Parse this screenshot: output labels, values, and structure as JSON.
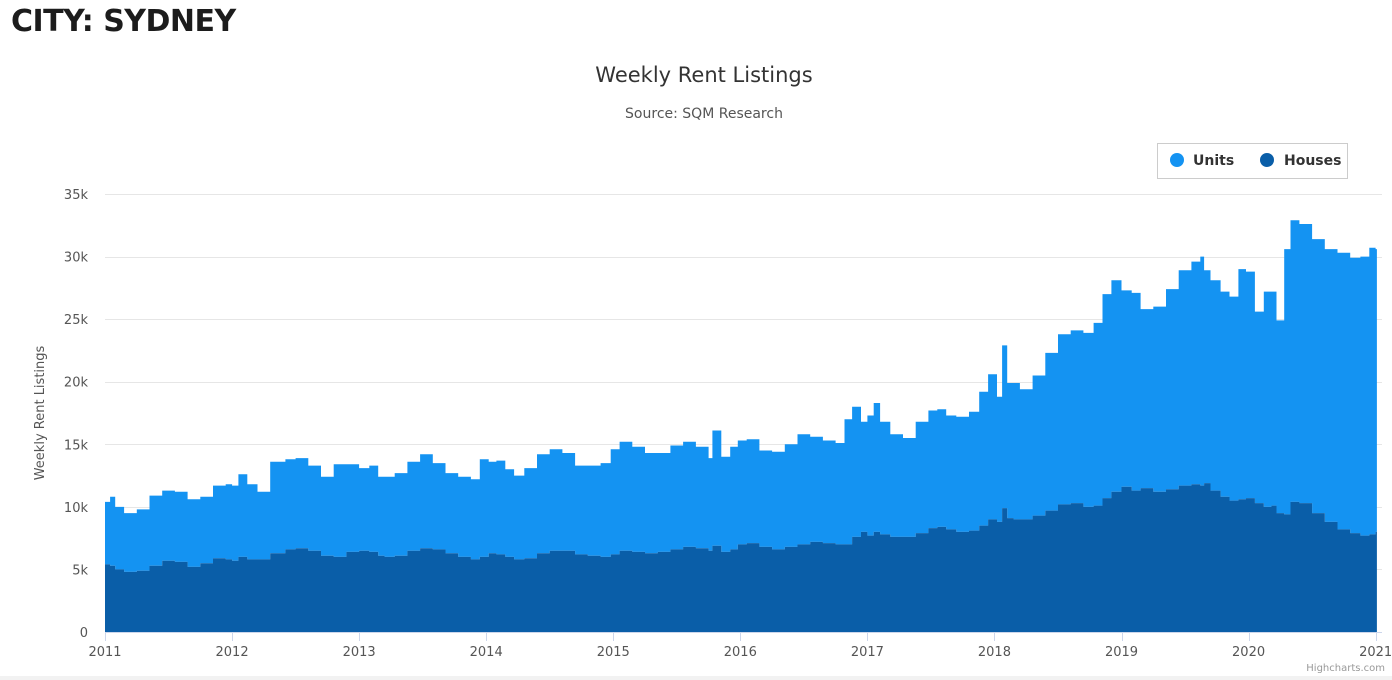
{
  "page": {
    "heading": "CITY: SYDNEY"
  },
  "chart_data": {
    "type": "area",
    "title": "Weekly Rent Listings",
    "subtitle": "Source: SQM Research",
    "xlabel": "",
    "ylabel": "Weekly Rent Listings",
    "credits": "Highcharts.com",
    "stacked": true,
    "grid": true,
    "legend_position": "top-right",
    "xlim": [
      2011.0,
      2021.05
    ],
    "ylim": [
      0,
      35000
    ],
    "x_ticks": [
      2011,
      2012,
      2013,
      2014,
      2015,
      2016,
      2017,
      2018,
      2019,
      2020,
      2021
    ],
    "x_tick_labels": [
      "2011",
      "2012",
      "2013",
      "2014",
      "2015",
      "2016",
      "2017",
      "2018",
      "2019",
      "2020",
      "2021"
    ],
    "y_ticks": [
      0,
      5000,
      10000,
      15000,
      20000,
      25000,
      30000,
      35000
    ],
    "y_tick_labels": [
      "0",
      "5k",
      "10k",
      "15k",
      "20k",
      "25k",
      "30k",
      "35k"
    ],
    "x": [
      2011.0,
      2011.04,
      2011.08,
      2011.15,
      2011.25,
      2011.35,
      2011.45,
      2011.55,
      2011.65,
      2011.75,
      2011.85,
      2011.95,
      2012.0,
      2012.05,
      2012.12,
      2012.2,
      2012.3,
      2012.42,
      2012.5,
      2012.6,
      2012.7,
      2012.8,
      2012.9,
      2013.0,
      2013.08,
      2013.15,
      2013.2,
      2013.28,
      2013.38,
      2013.48,
      2013.58,
      2013.68,
      2013.78,
      2013.88,
      2013.95,
      2014.02,
      2014.08,
      2014.15,
      2014.22,
      2014.3,
      2014.4,
      2014.5,
      2014.6,
      2014.7,
      2014.8,
      2014.9,
      2014.98,
      2015.05,
      2015.15,
      2015.25,
      2015.35,
      2015.45,
      2015.55,
      2015.65,
      2015.75,
      2015.78,
      2015.85,
      2015.92,
      2015.98,
      2016.05,
      2016.15,
      2016.25,
      2016.35,
      2016.45,
      2016.55,
      2016.65,
      2016.75,
      2016.82,
      2016.88,
      2016.95,
      2017.0,
      2017.05,
      2017.1,
      2017.18,
      2017.28,
      2017.38,
      2017.48,
      2017.55,
      2017.62,
      2017.7,
      2017.8,
      2017.88,
      2017.95,
      2018.02,
      2018.06,
      2018.1,
      2018.15,
      2018.2,
      2018.3,
      2018.4,
      2018.5,
      2018.6,
      2018.7,
      2018.78,
      2018.85,
      2018.92,
      2019.0,
      2019.08,
      2019.15,
      2019.25,
      2019.35,
      2019.45,
      2019.55,
      2019.62,
      2019.65,
      2019.7,
      2019.78,
      2019.85,
      2019.92,
      2019.98,
      2020.05,
      2020.12,
      2020.18,
      2020.22,
      2020.28,
      2020.33,
      2020.4,
      2020.5,
      2020.6,
      2020.7,
      2020.8,
      2020.88,
      2020.95,
      2021.0
    ],
    "series": [
      {
        "name": "Houses",
        "color": "#0a5ea8",
        "values": [
          5400,
          5300,
          5000,
          4800,
          4900,
          5300,
          5700,
          5600,
          5200,
          5500,
          5900,
          5800,
          5700,
          6000,
          5800,
          5800,
          6300,
          6600,
          6700,
          6500,
          6100,
          6000,
          6400,
          6500,
          6400,
          6100,
          6000,
          6100,
          6500,
          6700,
          6600,
          6300,
          6000,
          5800,
          6000,
          6300,
          6200,
          6000,
          5800,
          5900,
          6300,
          6500,
          6500,
          6200,
          6100,
          6000,
          6200,
          6500,
          6400,
          6300,
          6400,
          6600,
          6800,
          6700,
          6500,
          6900,
          6400,
          6600,
          7000,
          7100,
          6800,
          6600,
          6800,
          7000,
          7200,
          7100,
          7000,
          7000,
          7600,
          8000,
          7700,
          8000,
          7800,
          7600,
          7600,
          7900,
          8300,
          8400,
          8200,
          8000,
          8100,
          8500,
          9000,
          8800,
          9900,
          9100,
          9000,
          9000,
          9300,
          9700,
          10200,
          10300,
          10000,
          10100,
          10700,
          11200,
          11600,
          11300,
          11500,
          11200,
          11400,
          11700,
          11800,
          11700,
          11900,
          11300,
          10800,
          10500,
          10600,
          10700,
          10300,
          10000,
          10100,
          9500,
          9400,
          10400,
          10300,
          9500,
          8800,
          8200,
          7900,
          7700,
          7800,
          8000
        ]
      },
      {
        "name": "Units",
        "color": "#1493f2",
        "values": [
          5000,
          5500,
          5000,
          4700,
          4900,
          5600,
          5600,
          5600,
          5400,
          5300,
          5800,
          6000,
          6000,
          6600,
          6000,
          5400,
          7300,
          7200,
          7200,
          6800,
          6300,
          7400,
          7000,
          6600,
          6900,
          6300,
          6400,
          6600,
          7100,
          7500,
          6900,
          6400,
          6400,
          6400,
          7800,
          7300,
          7500,
          7000,
          6700,
          7200,
          7900,
          8100,
          7800,
          7100,
          7200,
          7500,
          8400,
          8700,
          8400,
          8000,
          7900,
          8300,
          8400,
          8100,
          7400,
          9200,
          7600,
          8200,
          8300,
          8300,
          7700,
          7800,
          8200,
          8800,
          8400,
          8200,
          8100,
          10000,
          10400,
          8800,
          9600,
          10300,
          9000,
          8200,
          7900,
          8900,
          9400,
          9400,
          9100,
          9200,
          9500,
          10700,
          11600,
          10000,
          13000,
          10800,
          10900,
          10400,
          11200,
          12600,
          13600,
          13800,
          13900,
          14600,
          16300,
          16900,
          15700,
          15800,
          14300,
          14800,
          16000,
          17200,
          17800,
          18300,
          17000,
          16800,
          16400,
          16300,
          18400,
          18100,
          15300,
          17200,
          17100,
          15400,
          21200,
          22500,
          22300,
          21900,
          21800,
          22100,
          22000,
          22300,
          22900,
          22600
        ]
      }
    ]
  }
}
